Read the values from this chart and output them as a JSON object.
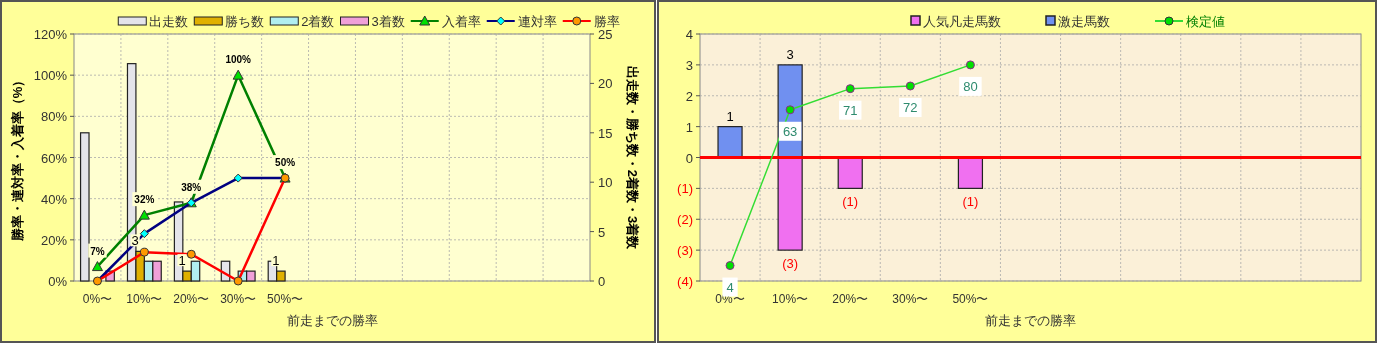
{
  "chart_data": [
    {
      "type": "bar",
      "xlabel": "前走までの勝率",
      "ylabel": "勝率・連対率・入着率（%）",
      "y2label": "出走数・勝ち数・2着数・3着数",
      "categories": [
        "0%〜",
        "10%〜",
        "20%〜",
        "30%〜",
        "50%〜",
        null,
        null,
        null,
        null,
        null,
        null
      ],
      "ylim": [
        0,
        120
      ],
      "yticks": [
        {
          "value": 0,
          "label": "0%"
        },
        {
          "value": 20,
          "label": "20%"
        },
        {
          "value": 40,
          "label": "40%"
        },
        {
          "value": 60,
          "label": "60%"
        },
        {
          "value": 80,
          "label": "80%"
        },
        {
          "value": 100,
          "label": "100%"
        },
        {
          "value": 120,
          "label": "120%"
        }
      ],
      "y2lim": [
        0,
        25
      ],
      "y2ticks": [
        0,
        5,
        10,
        15,
        20,
        25
      ],
      "grid": true,
      "legend": "top",
      "series": [
        {
          "name": "出走数",
          "axis": "y2",
          "color": "#e4e4ea",
          "values": [
            15,
            22,
            8,
            2,
            2,
            null,
            null,
            null,
            null,
            null,
            null
          ]
        },
        {
          "name": "勝ち数",
          "axis": "y2",
          "color": "#e0b000",
          "values": [
            0,
            3,
            1,
            0,
            1,
            null,
            null,
            null,
            null,
            null,
            null
          ],
          "value_labels": [
            null,
            "3",
            "1",
            null,
            "1",
            null,
            null,
            null,
            null,
            null,
            null
          ]
        },
        {
          "name": "2着数",
          "axis": "y2",
          "color": "#b0eef0",
          "values": [
            0,
            2,
            2,
            1,
            0,
            null,
            null,
            null,
            null,
            null,
            null
          ]
        },
        {
          "name": "3着数",
          "axis": "y2",
          "color": "#f0a0d8",
          "values": [
            1,
            2,
            0,
            1,
            0,
            null,
            null,
            null,
            null,
            null,
            null
          ]
        },
        {
          "name": "入着率",
          "type": "line",
          "color": "#008000",
          "marker": "triangle",
          "colors": [
            "#00e000",
            "#00e000",
            "#00e000",
            "#00e000",
            "#00e000",
            null,
            null,
            null,
            null,
            null,
            null
          ],
          "values": [
            7,
            32,
            38,
            100,
            50,
            null,
            null,
            null,
            null,
            null,
            null
          ],
          "value_labels": [
            "7%",
            "32%",
            "38%",
            "100%",
            "50%",
            null,
            null,
            null,
            null,
            null,
            null
          ]
        },
        {
          "name": "連対率",
          "type": "line",
          "color": "#000080",
          "marker": "diamond",
          "colors": [
            "#00ffff",
            "#00ffff",
            "#00ffff",
            "#00ffff",
            "#00ffff",
            null,
            null,
            null,
            null,
            null,
            null
          ],
          "values": [
            0,
            23,
            38,
            50,
            50,
            null,
            null,
            null,
            null,
            null,
            null
          ]
        },
        {
          "name": "勝率",
          "type": "line",
          "color": "#ff0000",
          "marker": "circle",
          "colors": [
            "#ff9900",
            "#ff9900",
            "#ff9900",
            "#ff9900",
            "#ff9900",
            null,
            null,
            null,
            null,
            null,
            null
          ],
          "values": [
            0,
            14,
            13,
            0,
            50,
            null,
            null,
            null,
            null,
            null,
            null
          ]
        }
      ]
    },
    {
      "type": "bar",
      "xlabel": "前走までの勝率",
      "stacked": true,
      "categories": [
        "0%〜",
        "10%〜",
        "20%〜",
        "30%〜",
        "50%〜",
        null,
        null,
        null,
        null,
        null,
        null
      ],
      "ylim": [
        -4,
        4
      ],
      "yticks": [
        4,
        3,
        2,
        1,
        0,
        {
          "value": -1,
          "label": "(1)"
        },
        {
          "value": -2,
          "label": "(2)"
        },
        {
          "value": -3,
          "label": "(3)"
        },
        {
          "value": -4,
          "label": "(4)"
        }
      ],
      "y2lim": [
        -1.85,
        91.7
      ],
      "grid": true,
      "legend": "top",
      "ref_lines": [
        {
          "axis": "y",
          "value": 0,
          "color": "#ff0000"
        }
      ],
      "series": [
        {
          "name": "人気凡走馬数",
          "color": "#f070f0",
          "values": [
            0,
            -3,
            -1,
            0,
            -1,
            null,
            null,
            null,
            null,
            null,
            null
          ],
          "value_labels": [
            null,
            "(3)",
            "(1)",
            null,
            "(1)",
            null,
            null,
            null,
            null,
            null,
            null
          ]
        },
        {
          "name": "激走馬数",
          "color": "#7090f0",
          "values": [
            1,
            3,
            0,
            0,
            0,
            null,
            null,
            null,
            null,
            null,
            null
          ],
          "value_labels": [
            "1",
            "3",
            null,
            null,
            null,
            null,
            null,
            null,
            null,
            null,
            null
          ]
        },
        {
          "name": "検定値",
          "type": "line",
          "axis": "y2",
          "color": "#33dd33",
          "marker": "circle",
          "colors": [
            "#00e000",
            "#00e000",
            "#00e000",
            "#00e000",
            "#00e000",
            null,
            null,
            null,
            null,
            null,
            null
          ],
          "values": [
            4,
            63,
            71,
            72,
            80,
            null,
            null,
            null,
            null,
            null,
            null
          ],
          "value_labels": [
            "4",
            "63",
            "71",
            "72",
            "80",
            null,
            null,
            null,
            null,
            null,
            null
          ]
        }
      ]
    }
  ]
}
